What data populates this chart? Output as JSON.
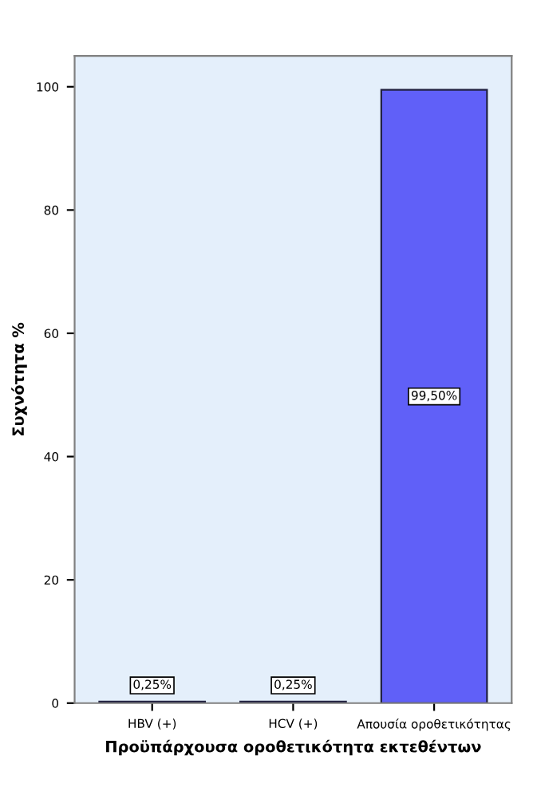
{
  "chart_data": {
    "type": "bar",
    "xlabel": "Προϋπάρχουσα οροθετικότητα εκτεθέντων",
    "ylabel": "Συχνότητα %",
    "categories": [
      "HBV (+)",
      "HCV (+)",
      "Απουσία οροθετικότητας"
    ],
    "values": [
      0.25,
      0.25,
      99.5
    ],
    "value_labels": [
      "0,25%",
      "0,25%",
      "99,50%"
    ],
    "color": "#6060f8",
    "ylim": [
      0,
      105
    ],
    "yticks": [
      0,
      20,
      40,
      60,
      80,
      100
    ],
    "grid": false
  }
}
